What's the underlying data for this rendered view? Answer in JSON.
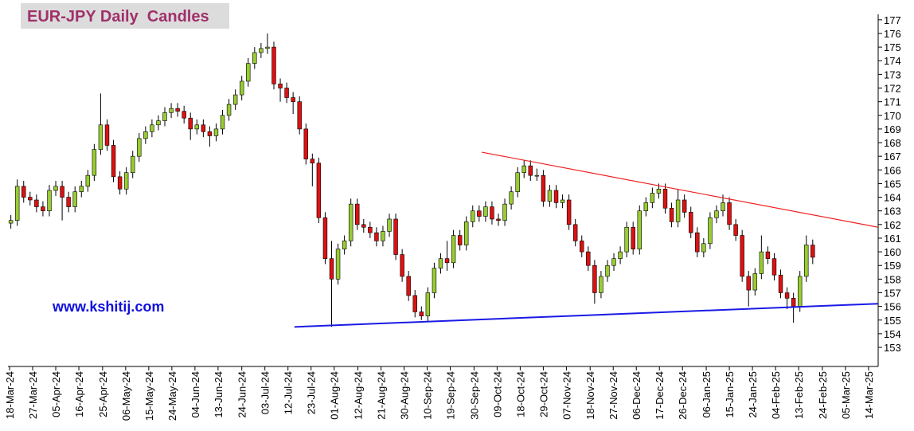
{
  "chart_data": {
    "type": "candlestick",
    "title": "EUR-JPY Daily  Candles",
    "annotation": "www.kshitij.com",
    "up_color": "#99cc33",
    "down_color": "#dd1111",
    "open": [
      162.1,
      162.3,
      164.8,
      164.0,
      163.8,
      163.3,
      163.0,
      164.5,
      164.8,
      164.0,
      163.3,
      164.4,
      164.8,
      165.6,
      167.5,
      169.3,
      167.8,
      165.5,
      164.6,
      165.8,
      167.0,
      168.3,
      168.8,
      169.3,
      169.6,
      170.2,
      170.5,
      170.3,
      169.8,
      169.0,
      169.3,
      168.8,
      168.5,
      169.0,
      170.0,
      170.8,
      171.5,
      172.5,
      173.8,
      174.6,
      174.9,
      175.0,
      172.3,
      172.0,
      171.3,
      171.0,
      169.0,
      166.8,
      166.5,
      162.5,
      159.5,
      158.0,
      160.2,
      160.8,
      163.5,
      162.0,
      161.8,
      161.4,
      160.8,
      161.5,
      162.4,
      159.8,
      158.2,
      156.8,
      155.6,
      155.3,
      157.0,
      158.8,
      159.5,
      159.2,
      161.2,
      160.5,
      162.2,
      163.0,
      162.6,
      163.3,
      162.4,
      162.3,
      163.5,
      164.4,
      165.8,
      166.3,
      165.6,
      165.6,
      163.7,
      164.5,
      163.6,
      163.8,
      162.0,
      160.8,
      160.0,
      159.0,
      157.0,
      158.2,
      159.0,
      159.5,
      160.0,
      161.8,
      160.2,
      163.0,
      163.6,
      164.3,
      164.6,
      163.2,
      162.2,
      163.8,
      162.9,
      161.4,
      160.0,
      160.6,
      162.5,
      163.0,
      163.6,
      162.0,
      161.2,
      158.2,
      157.2,
      158.4,
      160.0,
      159.5,
      158.3,
      157.0,
      156.6,
      156.0,
      158.2,
      160.5
    ],
    "high": [
      162.7,
      165.3,
      165.2,
      164.4,
      164.2,
      163.7,
      164.9,
      165.2,
      165.2,
      164.4,
      164.8,
      165.2,
      166.0,
      167.9,
      171.6,
      169.7,
      168.2,
      165.9,
      166.2,
      167.4,
      168.7,
      169.2,
      169.7,
      170.0,
      170.6,
      170.9,
      170.9,
      170.7,
      170.2,
      169.7,
      169.7,
      169.2,
      169.4,
      170.4,
      171.2,
      171.9,
      172.9,
      174.2,
      175.0,
      175.3,
      176.0,
      175.4,
      172.7,
      172.4,
      171.7,
      171.4,
      169.4,
      167.2,
      166.9,
      162.9,
      160.8,
      160.6,
      161.2,
      163.9,
      163.9,
      162.4,
      162.2,
      161.8,
      161.9,
      162.8,
      162.8,
      160.2,
      158.6,
      157.2,
      156.0,
      157.4,
      159.2,
      159.9,
      160.8,
      161.6,
      161.6,
      162.6,
      163.4,
      163.4,
      163.7,
      163.7,
      162.8,
      163.9,
      164.8,
      166.2,
      166.7,
      166.7,
      166.1,
      166.0,
      164.9,
      164.9,
      164.2,
      164.2,
      162.4,
      161.2,
      160.4,
      159.4,
      158.6,
      159.4,
      159.9,
      160.4,
      162.2,
      162.2,
      163.4,
      164.0,
      164.7,
      165.0,
      165.0,
      163.6,
      164.6,
      164.2,
      163.3,
      161.8,
      161.0,
      162.9,
      163.4,
      164.2,
      164.0,
      162.4,
      161.6,
      158.6,
      158.8,
      161.2,
      160.4,
      159.9,
      158.7,
      157.4,
      157.0,
      158.6,
      161.2,
      160.9
    ],
    "low": [
      161.7,
      161.9,
      163.6,
      163.4,
      162.9,
      162.6,
      162.6,
      164.1,
      162.3,
      162.9,
      162.9,
      164.0,
      164.4,
      165.2,
      167.1,
      167.4,
      165.1,
      164.2,
      164.2,
      165.4,
      166.6,
      167.9,
      168.4,
      168.9,
      169.2,
      169.8,
      169.9,
      169.4,
      168.2,
      168.6,
      168.4,
      167.7,
      168.1,
      168.6,
      169.6,
      170.4,
      171.1,
      172.1,
      173.4,
      174.2,
      174.5,
      171.9,
      171.0,
      170.9,
      170.1,
      168.6,
      166.4,
      164.8,
      162.1,
      159.1,
      154.5,
      157.6,
      159.8,
      160.4,
      161.6,
      161.4,
      161.0,
      160.4,
      160.4,
      161.1,
      159.4,
      157.8,
      156.4,
      155.2,
      155.0,
      154.9,
      156.6,
      158.4,
      158.6,
      158.8,
      160.1,
      160.1,
      161.8,
      162.2,
      162.2,
      162.0,
      161.9,
      161.9,
      163.1,
      164.0,
      165.4,
      165.2,
      165.2,
      163.3,
      163.3,
      163.2,
      163.2,
      161.6,
      160.4,
      159.6,
      158.6,
      156.2,
      156.6,
      157.8,
      158.6,
      159.1,
      159.6,
      159.8,
      159.8,
      162.6,
      163.2,
      163.9,
      162.8,
      161.8,
      161.8,
      162.5,
      161.0,
      159.6,
      159.6,
      160.2,
      162.1,
      162.6,
      161.6,
      160.8,
      157.8,
      156.0,
      156.8,
      158.0,
      159.1,
      157.9,
      156.6,
      155.8,
      154.8,
      155.6,
      157.8,
      159.1
    ],
    "close": [
      162.3,
      164.8,
      164.0,
      163.8,
      163.3,
      163.0,
      164.5,
      164.8,
      164.0,
      163.3,
      164.4,
      164.8,
      165.6,
      167.5,
      169.3,
      167.8,
      165.5,
      164.6,
      165.8,
      167.0,
      168.3,
      168.8,
      169.3,
      169.6,
      170.2,
      170.5,
      170.3,
      169.8,
      169.0,
      169.3,
      168.8,
      168.5,
      169.0,
      170.0,
      170.8,
      171.5,
      172.5,
      173.8,
      174.6,
      174.9,
      175.0,
      172.3,
      172.0,
      171.3,
      171.0,
      169.0,
      166.8,
      166.5,
      162.5,
      159.5,
      158.0,
      160.2,
      160.8,
      163.5,
      162.0,
      161.8,
      161.4,
      160.8,
      161.5,
      162.4,
      159.8,
      158.2,
      156.8,
      155.6,
      155.3,
      157.0,
      158.8,
      159.5,
      159.2,
      161.2,
      160.5,
      162.2,
      163.0,
      162.6,
      163.3,
      162.4,
      162.3,
      163.5,
      164.4,
      165.8,
      166.3,
      165.6,
      165.6,
      163.7,
      164.5,
      163.6,
      163.8,
      162.0,
      160.8,
      160.0,
      159.0,
      157.0,
      158.2,
      159.0,
      159.5,
      160.0,
      161.8,
      160.2,
      163.0,
      163.6,
      164.3,
      164.6,
      163.2,
      162.2,
      163.8,
      162.9,
      161.4,
      160.0,
      160.6,
      162.5,
      163.0,
      163.6,
      162.0,
      161.2,
      158.2,
      157.2,
      158.4,
      160.0,
      159.5,
      158.3,
      157.0,
      156.6,
      156.0,
      158.2,
      160.5,
      159.6
    ],
    "trend_lines": [
      {
        "color": "#ee2222",
        "x": [
          73.4,
          135.2
        ],
        "y": [
          167.3,
          161.8
        ]
      },
      {
        "color": "#1a1ae6",
        "x": [
          44.2,
          135.2
        ],
        "y": [
          154.5,
          156.2
        ]
      }
    ],
    "xlim": [
      -0.45,
      135.2
    ],
    "xticks": [
      {
        "value": -0.2,
        "label": "18-Mar-24"
      },
      {
        "value": 3.4,
        "label": "27-Mar-24"
      },
      {
        "value": 7.0,
        "label": "05-Apr-24"
      },
      {
        "value": 10.6,
        "label": "16-Apr-24"
      },
      {
        "value": 14.3,
        "label": "25-Apr-24"
      },
      {
        "value": 17.9,
        "label": "06-May-24"
      },
      {
        "value": 21.5,
        "label": "15-May-24"
      },
      {
        "value": 25.1,
        "label": "24-May-24"
      },
      {
        "value": 28.7,
        "label": "04-Jun-24"
      },
      {
        "value": 32.3,
        "label": "13-Jun-24"
      },
      {
        "value": 36.0,
        "label": "24-Jun-24"
      },
      {
        "value": 39.6,
        "label": "03-Jul-24"
      },
      {
        "value": 43.2,
        "label": "12-Jul-24"
      },
      {
        "value": 46.8,
        "label": "23-Jul-24"
      },
      {
        "value": 50.4,
        "label": "01-Aug-24"
      },
      {
        "value": 54.1,
        "label": "12-Aug-24"
      },
      {
        "value": 57.7,
        "label": "21-Aug-24"
      },
      {
        "value": 61.3,
        "label": "30-Aug-24"
      },
      {
        "value": 64.9,
        "label": "10-Sep-24"
      },
      {
        "value": 68.5,
        "label": "19-Sep-24"
      },
      {
        "value": 72.2,
        "label": "30-Sep-24"
      },
      {
        "value": 75.8,
        "label": "09-Oct-24"
      },
      {
        "value": 79.4,
        "label": "18-Oct-24"
      },
      {
        "value": 83.0,
        "label": "29-Oct-24"
      },
      {
        "value": 86.6,
        "label": "07-Nov-24"
      },
      {
        "value": 90.3,
        "label": "18-Nov-24"
      },
      {
        "value": 93.9,
        "label": "27-Nov-24"
      },
      {
        "value": 97.5,
        "label": "06-Dec-24"
      },
      {
        "value": 101.1,
        "label": "17-Dec-24"
      },
      {
        "value": 104.7,
        "label": "26-Dec-24"
      },
      {
        "value": 108.4,
        "label": "06-Jan-25"
      },
      {
        "value": 112.0,
        "label": "15-Jan-25"
      },
      {
        "value": 115.6,
        "label": "24-Jan-25"
      },
      {
        "value": 119.2,
        "label": "04-Feb-25"
      },
      {
        "value": 122.8,
        "label": "13-Feb-25"
      },
      {
        "value": 126.5,
        "label": "24-Feb-25"
      },
      {
        "value": 130.1,
        "label": "05-Mar-25"
      },
      {
        "value": 133.7,
        "label": "14-Mar-25"
      }
    ],
    "ylim": [
      151.6,
      177.4
    ],
    "yticks": [
      153,
      154,
      155,
      156,
      157,
      158,
      159,
      160,
      161,
      162,
      163,
      164,
      165,
      166,
      167,
      168,
      169,
      170,
      171,
      172,
      173,
      174,
      175,
      176,
      177
    ]
  }
}
